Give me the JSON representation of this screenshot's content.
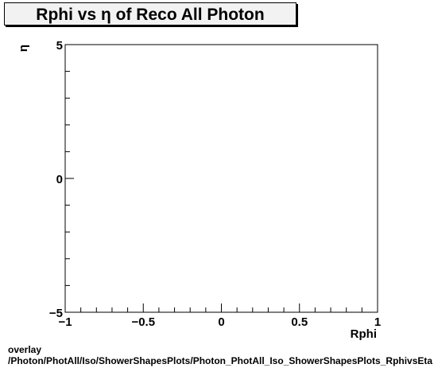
{
  "chart_data": {
    "type": "scatter",
    "title": "Rphi vs  η of Reco All Photon",
    "xlabel": "Rphi",
    "ylabel": "η",
    "xlim": [
      -1,
      1
    ],
    "ylim": [
      -5,
      5
    ],
    "x_ticks": [
      {
        "value": -1,
        "label": "−1"
      },
      {
        "value": -0.5,
        "label": "−0.5"
      },
      {
        "value": 0,
        "label": "0"
      },
      {
        "value": 0.5,
        "label": "0.5"
      },
      {
        "value": 1,
        "label": "1"
      }
    ],
    "y_ticks": [
      {
        "value": 5,
        "label": "5"
      },
      {
        "value": 0,
        "label": "0"
      },
      {
        "value": -5,
        "label": "−5"
      }
    ],
    "x_minor_step": 0.1,
    "y_minor_step": 1,
    "series": [],
    "grid": false
  },
  "footer": {
    "line1": "overlay",
    "line2": "/Photon/PhotAll/Iso/ShowerShapesPlots/Photon_PhotAll_Iso_ShowerShapesPlots_RphivsEta"
  }
}
